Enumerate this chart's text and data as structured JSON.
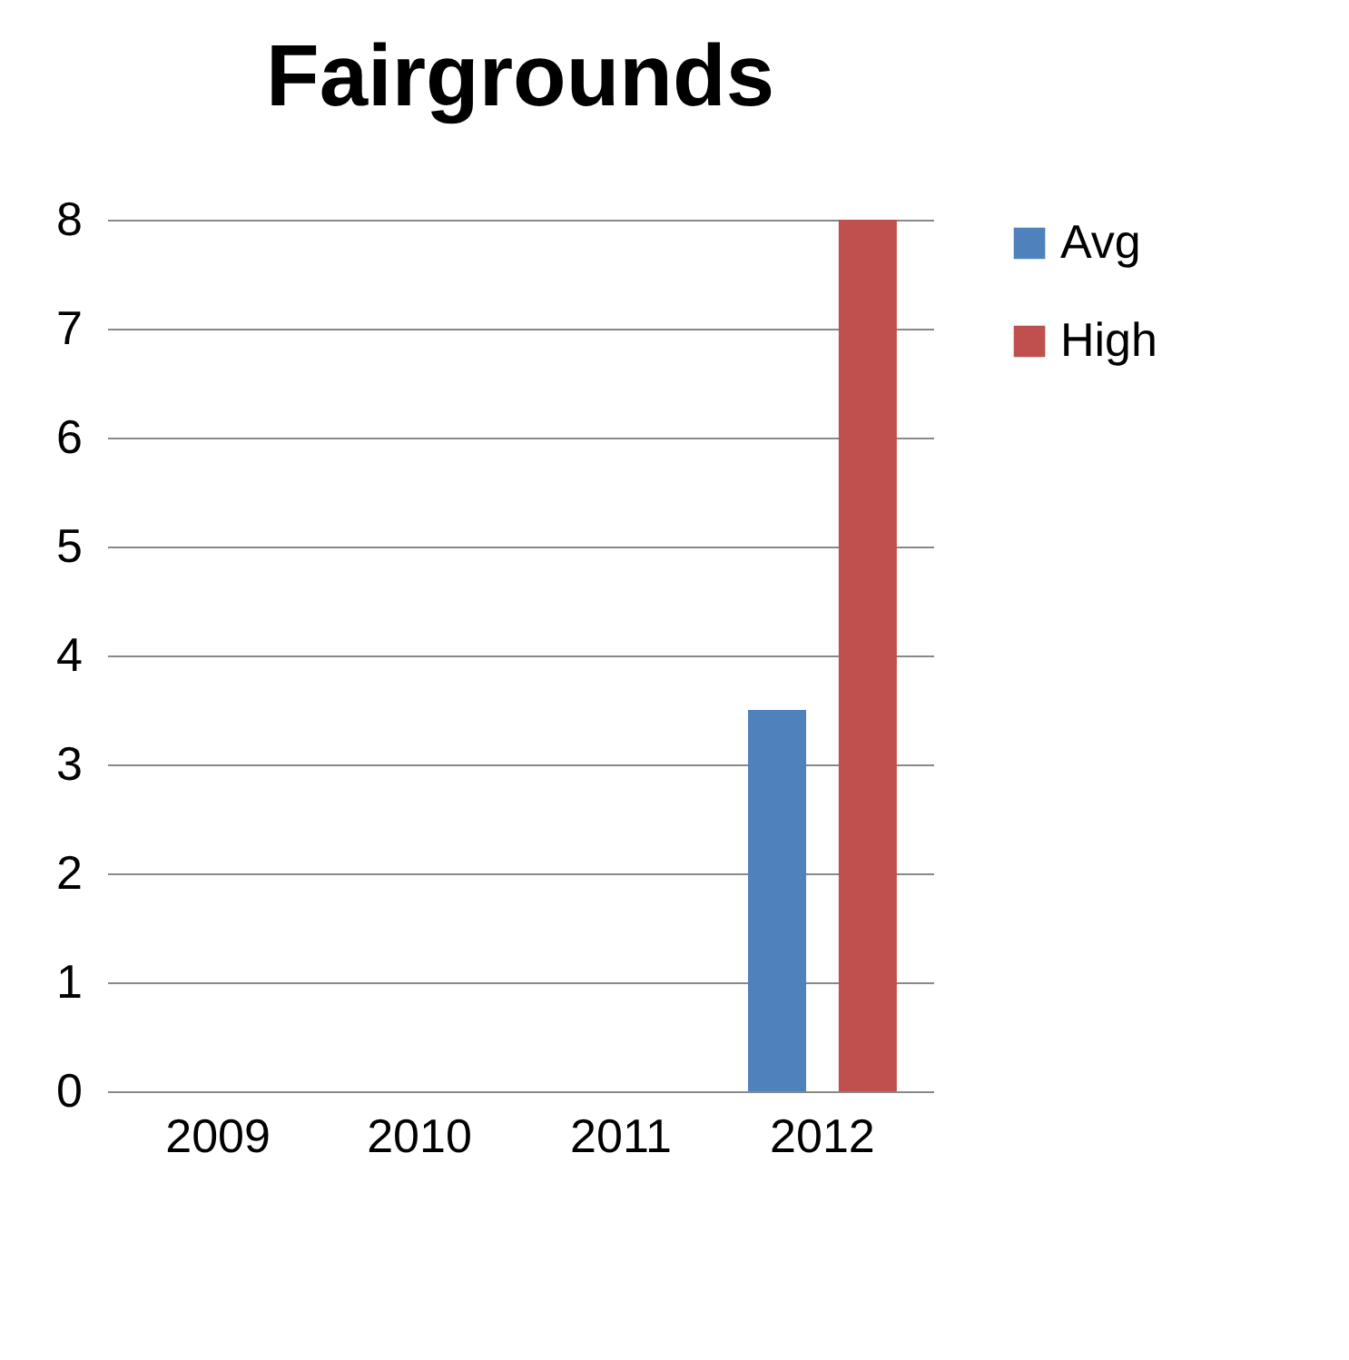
{
  "chart_data": {
    "type": "bar",
    "title": "Fairgrounds",
    "categories": [
      "2009",
      "2010",
      "2011",
      "2012"
    ],
    "series": [
      {
        "name": "Avg",
        "color": "#4f81bd",
        "values": [
          null,
          null,
          null,
          3.5
        ]
      },
      {
        "name": "High",
        "color": "#c0504d",
        "values": [
          null,
          null,
          null,
          8
        ]
      }
    ],
    "ylim": [
      0,
      8
    ],
    "yticks": [
      0,
      1,
      2,
      3,
      4,
      5,
      6,
      7,
      8
    ],
    "grid": "y",
    "legend": "right"
  }
}
